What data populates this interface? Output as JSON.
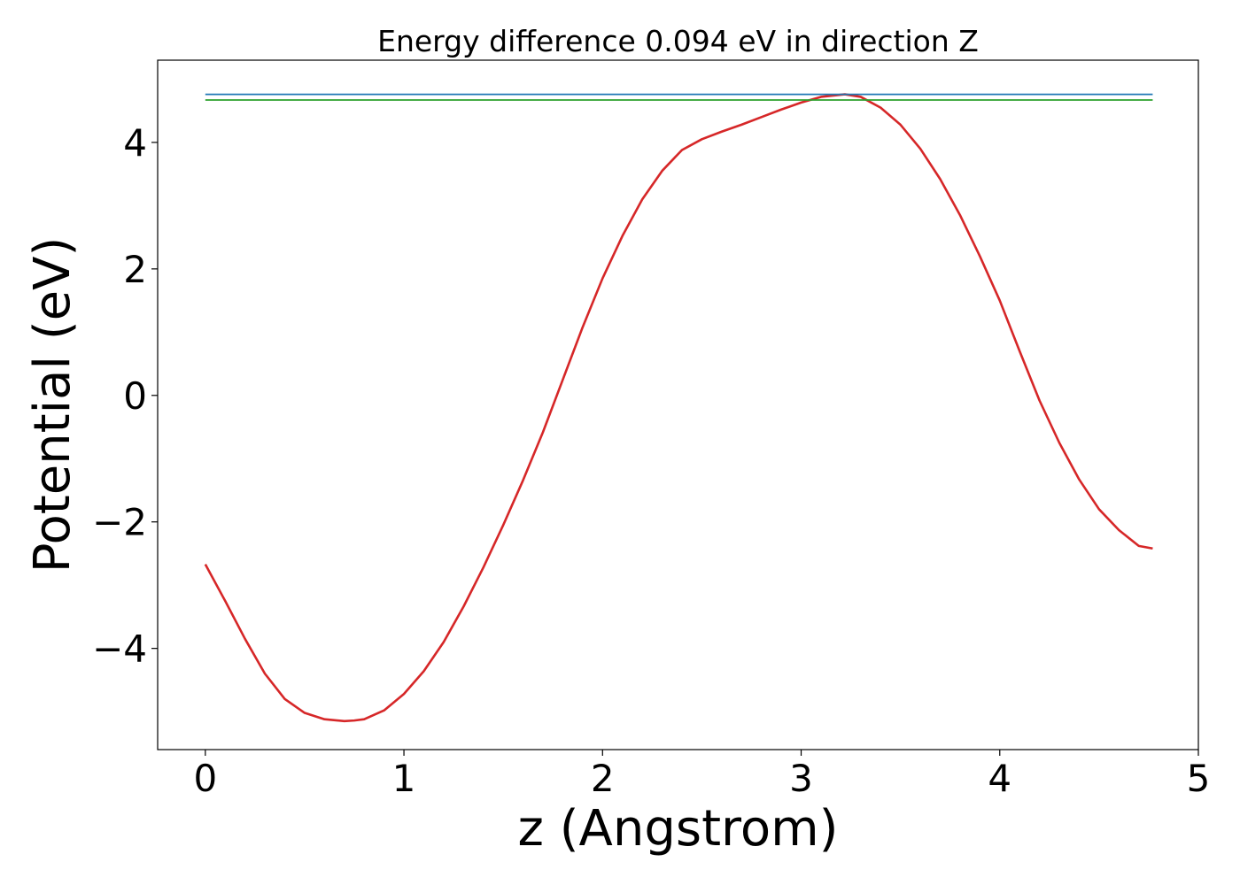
{
  "chart_data": {
    "type": "line",
    "title": "Energy difference 0.094 eV in direction Z",
    "xlabel": "z (Angstrom)",
    "ylabel": "Potential (eV)",
    "xlim": [
      -0.24,
      5.0
    ],
    "ylim": [
      -5.6,
      5.3
    ],
    "xticks": [
      0,
      1,
      2,
      3,
      4,
      5
    ],
    "xtick_labels": [
      "0",
      "1",
      "2",
      "3",
      "4",
      "5"
    ],
    "yticks": [
      -4,
      -2,
      0,
      2,
      4
    ],
    "ytick_labels": [
      "−4",
      "−2",
      "0",
      "2",
      "4"
    ],
    "grid": false,
    "series": [
      {
        "color": "#d62728",
        "x": [
          0,
          0.1,
          0.2,
          0.3,
          0.4,
          0.5,
          0.6,
          0.7,
          0.75,
          0.8,
          0.9,
          1.0,
          1.1,
          1.2,
          1.3,
          1.4,
          1.5,
          1.6,
          1.7,
          1.8,
          1.9,
          2.0,
          2.1,
          2.2,
          2.3,
          2.4,
          2.5,
          2.6,
          2.7,
          2.8,
          2.9,
          3.0,
          3.1,
          3.22,
          3.3,
          3.4,
          3.5,
          3.6,
          3.7,
          3.8,
          3.9,
          4.0,
          4.1,
          4.2,
          4.3,
          4.4,
          4.5,
          4.6,
          4.7,
          4.77
        ],
        "y": [
          -2.67,
          -3.25,
          -3.85,
          -4.4,
          -4.8,
          -5.02,
          -5.12,
          -5.15,
          -5.14,
          -5.12,
          -4.98,
          -4.72,
          -4.36,
          -3.9,
          -3.34,
          -2.72,
          -2.05,
          -1.34,
          -0.58,
          0.25,
          1.08,
          1.85,
          2.52,
          3.1,
          3.55,
          3.88,
          4.05,
          4.17,
          4.28,
          4.4,
          4.52,
          4.63,
          4.72,
          4.76,
          4.72,
          4.55,
          4.28,
          3.9,
          3.42,
          2.85,
          2.2,
          1.5,
          0.7,
          -0.08,
          -0.75,
          -1.33,
          -1.8,
          -2.13,
          -2.38,
          -2.42
        ]
      },
      {
        "color": "#1f77b4",
        "x": [
          0,
          4.77
        ],
        "y": [
          4.76,
          4.76
        ]
      },
      {
        "color": "#2ca02c",
        "x": [
          0,
          4.77
        ],
        "y": [
          4.67,
          4.67
        ]
      }
    ]
  }
}
